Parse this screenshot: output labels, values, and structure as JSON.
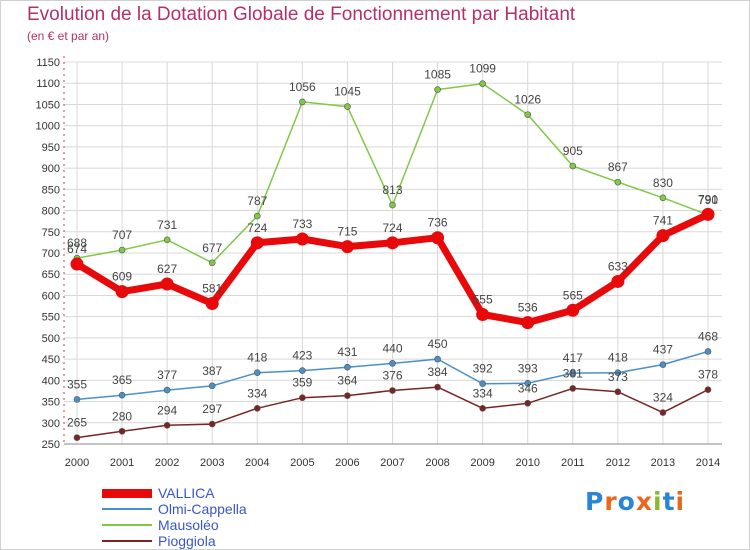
{
  "title": "Evolution de la Dotation Globale de Fonctionnement par Habitant",
  "subtitle": "(en € et par an)",
  "logo": {
    "text": "Proxiti",
    "letters": [
      {
        "ch": "P",
        "color": "#2a86d4"
      },
      {
        "ch": "r",
        "color": "#e8681e"
      },
      {
        "ch": "o",
        "color": "#2a86d4"
      },
      {
        "ch": "x",
        "color": "#e8681e"
      },
      {
        "ch": "i",
        "color": "#8ab832"
      },
      {
        "ch": "t",
        "color": "#2a86d4"
      },
      {
        "ch": "i",
        "color": "#e8681e"
      }
    ]
  },
  "chart_data": {
    "type": "line",
    "title": "Evolution de la Dotation Globale de Fonctionnement par Habitant",
    "ylabel": "(en € et par an)",
    "xlabel": "",
    "categories": [
      "2000",
      "2001",
      "2002",
      "2003",
      "2004",
      "2005",
      "2006",
      "2007",
      "2008",
      "2009",
      "2010",
      "2011",
      "2012",
      "2013",
      "2014"
    ],
    "ylim": [
      250,
      1150
    ],
    "yticks": [
      250,
      300,
      350,
      400,
      450,
      500,
      550,
      600,
      650,
      700,
      750,
      800,
      850,
      900,
      950,
      1000,
      1050,
      1100,
      1150
    ],
    "grid": true,
    "series": [
      {
        "name": "VALLICA",
        "color": "#e8090a",
        "values": [
          674,
          609,
          627,
          581,
          724,
          733,
          715,
          724,
          736,
          555,
          536,
          565,
          633,
          741,
          791
        ],
        "labels": [
          "674",
          "609",
          "627",
          "581",
          "724",
          "733",
          "715",
          "724",
          "736",
          "555",
          "536",
          "565",
          "633",
          "741",
          "791"
        ]
      },
      {
        "name": "Olmi-Cappella",
        "color": "#4a90c8",
        "values": [
          355,
          365,
          377,
          387,
          418,
          423,
          431,
          440,
          450,
          392,
          393,
          417,
          418,
          437,
          468
        ],
        "labels": [
          "355",
          "365",
          "377",
          "387",
          "418",
          "423",
          "431",
          "440",
          "450",
          "392",
          "393",
          "417",
          "418",
          "437",
          "468"
        ]
      },
      {
        "name": "Mausoléo",
        "color": "#80c846",
        "values": [
          688,
          707,
          731,
          677,
          787,
          1056,
          1045,
          813,
          1085,
          1099,
          1026,
          905,
          867,
          830,
          790
        ],
        "labels": [
          "688",
          "707",
          "731",
          "677",
          "787",
          "1056",
          "1045",
          "813",
          "1085",
          "1099",
          "1026",
          "905",
          "867",
          "830",
          "790"
        ]
      },
      {
        "name": "Pioggiola",
        "color": "#7a2424",
        "values": [
          265,
          280,
          294,
          297,
          334,
          359,
          364,
          376,
          384,
          334,
          346,
          381,
          373,
          324,
          378
        ],
        "labels": [
          "265",
          "280",
          "294",
          "297",
          "334",
          "359",
          "364",
          "376",
          "384",
          "334",
          "346",
          "381",
          "373",
          "324",
          "378"
        ]
      }
    ]
  }
}
